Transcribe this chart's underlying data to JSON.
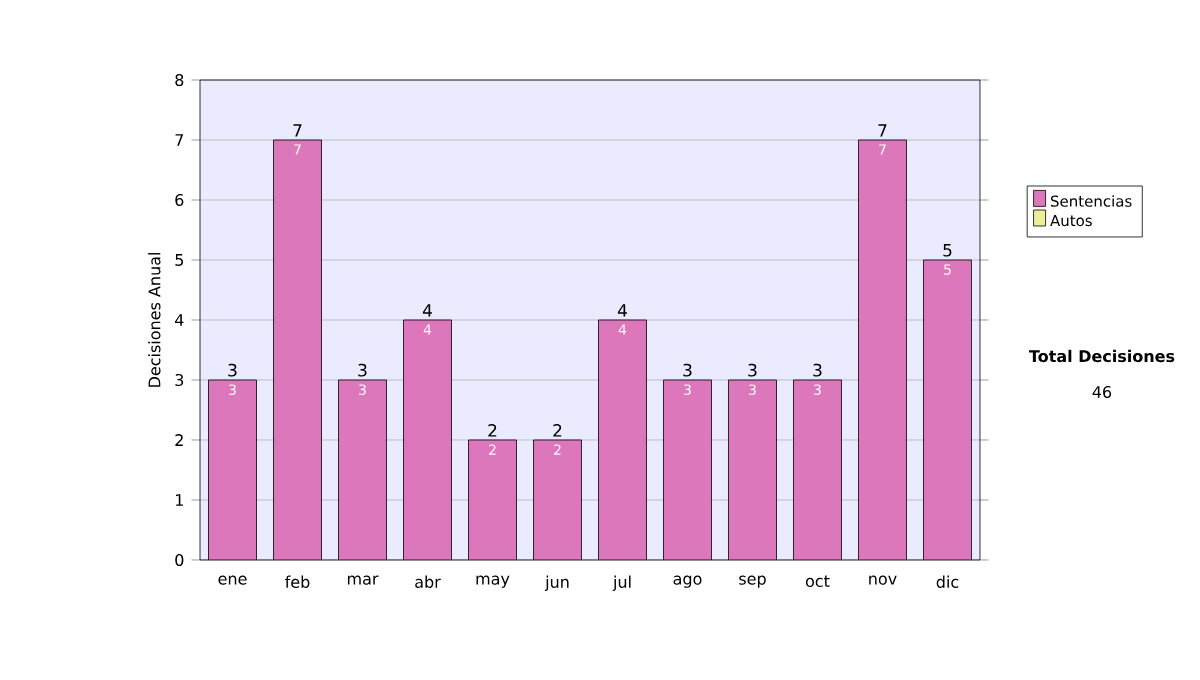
{
  "chart_data": {
    "type": "bar",
    "stacked": true,
    "ylabel": "Decisiones Anual",
    "categories": [
      "ene",
      "feb",
      "mar",
      "abr",
      "may",
      "jun",
      "jul",
      "ago",
      "sep",
      "oct",
      "nov",
      "dic"
    ],
    "series": [
      {
        "name": "Sentencias",
        "color": "#dd77bb",
        "values": [
          3,
          7,
          3,
          4,
          2,
          2,
          4,
          3,
          3,
          3,
          7,
          5
        ],
        "value_labels": [
          "3",
          "7",
          "3",
          "4",
          "2",
          "2",
          "4",
          "3",
          "3",
          "3",
          "7",
          "5"
        ]
      },
      {
        "name": "Autos",
        "color": "#eeee99",
        "values": [
          0,
          0,
          0,
          0,
          0,
          0,
          0,
          0,
          0,
          0,
          0,
          0
        ]
      }
    ],
    "totals": [
      "3",
      "7",
      "3",
      "4",
      "2",
      "2",
      "4",
      "3",
      "3",
      "3",
      "7",
      "5"
    ],
    "ylim": [
      0,
      8
    ],
    "yticks": [
      0,
      1,
      2,
      3,
      4,
      5,
      6,
      7,
      8
    ],
    "grid": "y",
    "legend": "right",
    "annotations": [
      "**Total Decisiones**",
      "46"
    ]
  }
}
